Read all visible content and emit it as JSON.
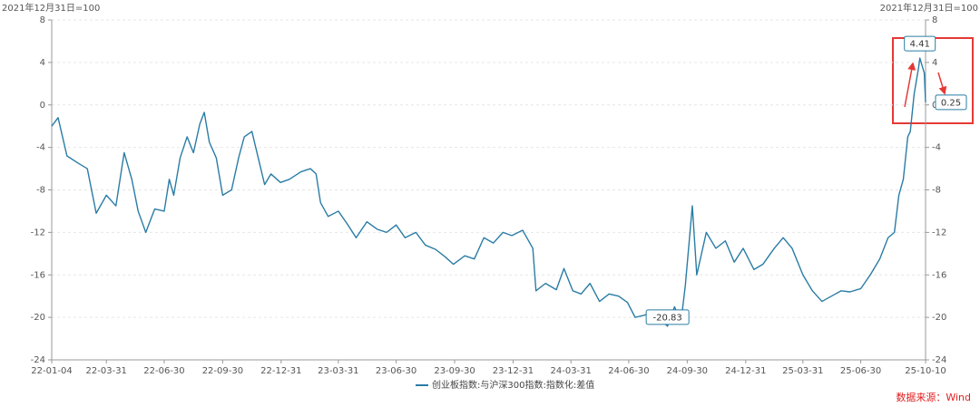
{
  "chart_data": {
    "type": "line",
    "y_label": "2021年12月31日=100",
    "y2_label": "2021年12月31日=100",
    "source": "数据来源：Wind",
    "xlim": [
      "22-01-04",
      "25-10-10"
    ],
    "xticks": [
      "22-01-04",
      "22-03-31",
      "22-06-30",
      "22-09-30",
      "22-12-31",
      "23-03-31",
      "23-06-30",
      "23-09-30",
      "23-12-31",
      "24-03-31",
      "24-06-30",
      "24-09-30",
      "24-12-31",
      "25-03-31",
      "25-06-30",
      "25-10-10"
    ],
    "ylim": [
      -24,
      8
    ],
    "yticks": [
      -24,
      -20,
      -16,
      -12,
      -8,
      -4,
      0,
      4,
      8
    ],
    "y2lim": [
      -24,
      8
    ],
    "y2ticks": [
      -24,
      -20,
      -16,
      -12,
      -8,
      -4,
      0,
      4,
      8
    ],
    "grid": true,
    "legend": "bottom",
    "x": [
      "22-01-04",
      "22-01-14",
      "22-01-28",
      "22-02-15",
      "22-03-01",
      "22-03-15",
      "22-03-31",
      "22-04-15",
      "22-04-28",
      "22-05-10",
      "22-05-20",
      "22-06-01",
      "22-06-15",
      "22-06-30",
      "22-07-08",
      "22-07-15",
      "22-07-25",
      "22-08-05",
      "22-08-15",
      "22-08-25",
      "22-09-01",
      "22-09-09",
      "22-09-20",
      "22-09-30",
      "22-10-14",
      "22-10-25",
      "22-11-03",
      "22-11-15",
      "22-11-25",
      "22-12-05",
      "22-12-15",
      "22-12-30",
      "23-01-13",
      "23-01-31",
      "23-02-15",
      "23-02-24",
      "23-03-03",
      "23-03-15",
      "23-03-31",
      "23-04-14",
      "23-04-28",
      "23-05-15",
      "23-05-31",
      "23-06-15",
      "23-06-30",
      "23-07-14",
      "23-07-31",
      "23-08-15",
      "23-08-31",
      "23-09-15",
      "23-09-28",
      "23-10-16",
      "23-10-31",
      "23-11-15",
      "23-11-30",
      "23-12-15",
      "23-12-29",
      "24-01-15",
      "24-01-31",
      "24-02-05",
      "24-02-20",
      "24-03-08",
      "24-03-20",
      "24-04-03",
      "24-04-16",
      "24-04-30",
      "24-05-15",
      "24-05-30",
      "24-06-14",
      "24-06-28",
      "24-07-10",
      "24-07-24",
      "24-08-07",
      "24-08-20",
      "24-08-30",
      "24-09-10",
      "24-09-20",
      "24-09-27",
      "24-10-08",
      "24-10-15",
      "24-10-30",
      "24-11-14",
      "24-11-29",
      "24-12-13",
      "24-12-27",
      "25-01-13",
      "25-01-27",
      "25-02-14",
      "25-02-28",
      "25-03-14",
      "25-03-31",
      "25-04-15",
      "25-04-30",
      "25-05-15",
      "25-05-30",
      "25-06-13",
      "25-06-30",
      "25-07-15",
      "25-07-30",
      "25-08-12",
      "25-08-22",
      "25-08-29",
      "25-09-05",
      "25-09-12",
      "25-09-16",
      "25-09-22",
      "25-09-29",
      "25-10-01",
      "25-10-08",
      "25-10-10"
    ],
    "series": [
      {
        "name": "创业板指数:与沪深300指数:指数化:差值",
        "color": "#2a7ca5",
        "values": [
          -2,
          -1.2,
          -4.8,
          -5.5,
          -6,
          -10.2,
          -8.5,
          -9.5,
          -4.5,
          -7,
          -10,
          -12,
          -9.8,
          -10,
          -7,
          -8.5,
          -5,
          -3,
          -4.5,
          -1.8,
          -0.7,
          -3.5,
          -5,
          -8.5,
          -8,
          -5,
          -3,
          -2.5,
          -5,
          -7.5,
          -6.5,
          -7.3,
          -7,
          -6.3,
          -6,
          -6.5,
          -9.2,
          -10.5,
          -10,
          -11.2,
          -12.5,
          -11,
          -11.7,
          -12,
          -11.3,
          -12.5,
          -12,
          -13.2,
          -13.6,
          -14.3,
          -15,
          -14.2,
          -14.5,
          -12.5,
          -13,
          -12,
          -12.3,
          -11.8,
          -13.5,
          -17.5,
          -16.8,
          -17.4,
          -15.4,
          -17.5,
          -17.8,
          -16.8,
          -18.5,
          -17.8,
          -18,
          -18.6,
          -20,
          -19.8,
          -19.5,
          -20.3,
          -20.83,
          -19,
          -20.5,
          -17,
          -9.5,
          -16,
          -12,
          -13.5,
          -12.8,
          -14.8,
          -13.5,
          -15.5,
          -15,
          -13.5,
          -12.5,
          -13.5,
          -16,
          -17.5,
          -18.5,
          -18,
          -17.5,
          -17.6,
          -17.3,
          -16,
          -14.5,
          -12.5,
          -12,
          -8.5,
          -7,
          -3,
          -2.5,
          1,
          3.5,
          4.41,
          3,
          0.25
        ],
        "value_labels": [
          null,
          null,
          null,
          null,
          null,
          null,
          null,
          null,
          null,
          null,
          null,
          null,
          null,
          null,
          null,
          null,
          null,
          null,
          null,
          null,
          null,
          null,
          null,
          null,
          null,
          null,
          null,
          null,
          null,
          null,
          null,
          null,
          null,
          null,
          null,
          null,
          null,
          null,
          null,
          null,
          null,
          null,
          null,
          null,
          null,
          null,
          null,
          null,
          null,
          null,
          null,
          null,
          null,
          null,
          null,
          null,
          null,
          null,
          null,
          null,
          null,
          null,
          null,
          null,
          null,
          null,
          null,
          null,
          null,
          null,
          null,
          null,
          null,
          null,
          "-20.83",
          null,
          null,
          null,
          null,
          null,
          null,
          null,
          null,
          null,
          null,
          null,
          null,
          null,
          null,
          null,
          null,
          null,
          null,
          null,
          null,
          null,
          null,
          null,
          null,
          null,
          null,
          null,
          null,
          null,
          null,
          null,
          null,
          "4.41",
          null,
          "0.25"
        ]
      }
    ]
  }
}
